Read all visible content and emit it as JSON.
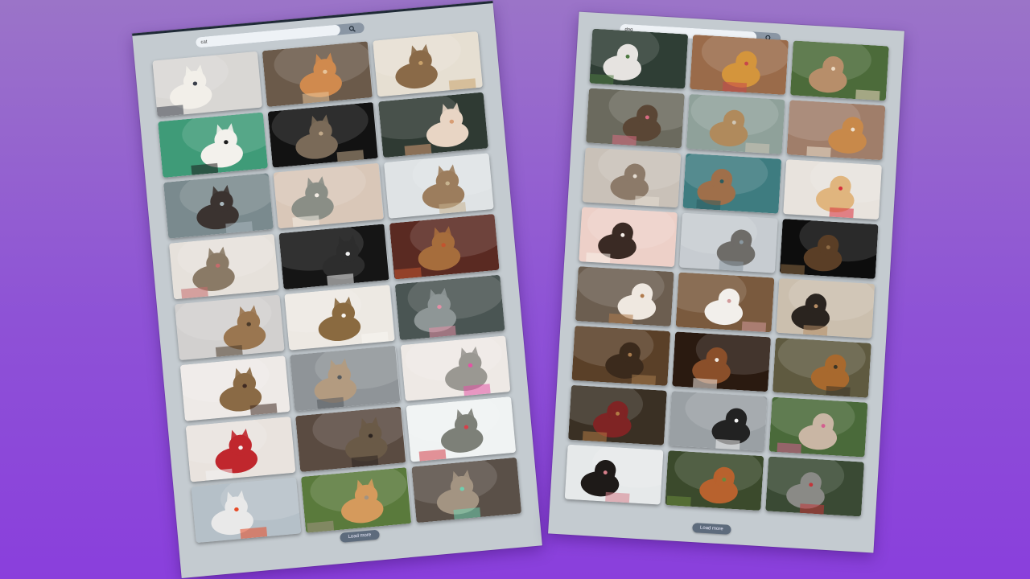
{
  "cat_panel": {
    "search_value": "cat",
    "search_icon": "search-icon",
    "load_more_label": "Load more",
    "photos": [
      {
        "subject": "siamese-cat",
        "bg": "#d9d7d4",
        "fg": "#f2efe9",
        "accent": "#3a3f4a"
      },
      {
        "subject": "orange-cats-lying",
        "bg": "#6b5a4a",
        "fg": "#d08a4e",
        "accent": "#e7c49a"
      },
      {
        "subject": "cat-in-white-kitchen",
        "bg": "#e6dfd2",
        "fg": "#8a6a48",
        "accent": "#c9a26b"
      },
      {
        "subject": "tuxedo-cat-green-wall",
        "bg": "#3f9b78",
        "fg": "#f3f1ec",
        "accent": "#1c1c1c"
      },
      {
        "subject": "tabby-cat-dark",
        "bg": "#121212",
        "fg": "#7a6a58",
        "accent": "#c1a98a"
      },
      {
        "subject": "hand-petting-cat",
        "bg": "#2f3a33",
        "fg": "#e8d5c4",
        "accent": "#d79d74"
      },
      {
        "subject": "cat-on-dock",
        "bg": "#7a8a8e",
        "fg": "#3b3330",
        "accent": "#a9b7bd"
      },
      {
        "subject": "kitten-on-bed",
        "bg": "#d9c7b8",
        "fg": "#8a8e86",
        "accent": "#f3ece4"
      },
      {
        "subject": "cat-in-basket",
        "bg": "#dfe3e5",
        "fg": "#9c7d5d",
        "accent": "#c7b38f"
      },
      {
        "subject": "yawning-tabby",
        "bg": "#e6e1db",
        "fg": "#8a7a66",
        "accent": "#c46b6b"
      },
      {
        "subject": "black-white-cat",
        "bg": "#151515",
        "fg": "#2d2d2d",
        "accent": "#f0f0f0"
      },
      {
        "subject": "tabby-on-cushion",
        "bg": "#5a2a22",
        "fg": "#a66d3c",
        "accent": "#c2542f"
      },
      {
        "subject": "tabby-profile",
        "bg": "#d2d0cf",
        "fg": "#9a7650",
        "accent": "#4a3a2a"
      },
      {
        "subject": "tabby-on-blanket",
        "bg": "#ede9e3",
        "fg": "#8a6a40",
        "accent": "#f7f5f2"
      },
      {
        "subject": "grey-cat-licking",
        "bg": "#4a5553",
        "fg": "#8e9696",
        "accent": "#e48fa6"
      },
      {
        "subject": "cat-being-petted",
        "bg": "#eeeae7",
        "fg": "#8a6a45",
        "accent": "#3f2a22"
      },
      {
        "subject": "kitten-on-street",
        "bg": "#8f9498",
        "fg": "#b39b80",
        "accent": "#555a5e"
      },
      {
        "subject": "kittens-with-toys",
        "bg": "#eee9e5",
        "fg": "#9a9892",
        "accent": "#e453a5"
      },
      {
        "subject": "cat-on-red-blanket",
        "bg": "#e9e3de",
        "fg": "#c0272d",
        "accent": "#f3f3f3"
      },
      {
        "subject": "tabby-sitting",
        "bg": "#5a4b41",
        "fg": "#6a5a47",
        "accent": "#2c2420"
      },
      {
        "subject": "cat-with-flowers",
        "bg": "#f0f3f3",
        "fg": "#7d8078",
        "accent": "#d6404a"
      },
      {
        "subject": "cat-in-red-cart",
        "bg": "#b5c0c8",
        "fg": "#e9e9e9",
        "accent": "#e74a26"
      },
      {
        "subject": "cat-on-path",
        "bg": "#5a7a3c",
        "fg": "#d59a5c",
        "accent": "#a29382"
      },
      {
        "subject": "tabby-closeup",
        "bg": "#5a5048",
        "fg": "#a39482",
        "accent": "#6fcfb0"
      }
    ]
  },
  "dog_panel": {
    "search_value": "dog",
    "search_icon": "search-icon",
    "load_more_label": "Load more",
    "photos": [
      {
        "subject": "small-white-dog-running",
        "bg": "#2f3e35",
        "fg": "#e6e3e0",
        "accent": "#4f7a42"
      },
      {
        "subject": "golden-retriever-flag",
        "bg": "#9a6b4a",
        "fg": "#d4953c",
        "accent": "#c7484b"
      },
      {
        "subject": "dogs-playing-grass",
        "bg": "#4c6b3a",
        "fg": "#b78e6a",
        "accent": "#ecd9c1"
      },
      {
        "subject": "dog-licking-nose",
        "bg": "#6b6a5e",
        "fg": "#5a4635",
        "accent": "#d86b82"
      },
      {
        "subject": "three-puppies-street",
        "bg": "#8fa19a",
        "fg": "#b08a5c",
        "accent": "#cfc6b6"
      },
      {
        "subject": "corgi-and-terrier",
        "bg": "#a07e6a",
        "fg": "#c8894a",
        "accent": "#ede1d0"
      },
      {
        "subject": "pug-in-blanket",
        "bg": "#c9c1b8",
        "fg": "#8c7a69",
        "accent": "#e4dcd2"
      },
      {
        "subject": "dogs-on-teal-bench",
        "bg": "#3e7c80",
        "fg": "#9f6f4a",
        "accent": "#2b5b5e"
      },
      {
        "subject": "golden-puppy",
        "bg": "#e8e3dd",
        "fg": "#e0b57e",
        "accent": "#d8303c"
      },
      {
        "subject": "jack-russell-pink",
        "bg": "#edd0c8",
        "fg": "#3a2a24",
        "accent": "#f7f0ea"
      },
      {
        "subject": "grey-dog-lake",
        "bg": "#c7ccd1",
        "fg": "#6e6c68",
        "accent": "#8a98a0"
      },
      {
        "subject": "dog-in-dark",
        "bg": "#0d0d0d",
        "fg": "#5a3e26",
        "accent": "#8d6a44"
      },
      {
        "subject": "dog-lying-floor",
        "bg": "#6c5e50",
        "fg": "#efe8e0",
        "accent": "#b07b4d"
      },
      {
        "subject": "white-pitbull-floor",
        "bg": "#7a5a3e",
        "fg": "#f2efeb",
        "accent": "#d19a9a"
      },
      {
        "subject": "puppy-on-beach",
        "bg": "#cbbfae",
        "fg": "#2a241f",
        "accent": "#b58c64"
      },
      {
        "subject": "dog-on-table",
        "bg": "#5a4028",
        "fg": "#3b2a1c",
        "accent": "#a57a4d"
      },
      {
        "subject": "boxer-closeup",
        "bg": "#2a1a10",
        "fg": "#8a4f2a",
        "accent": "#efe8e0"
      },
      {
        "subject": "dog-with-stick",
        "bg": "#5f5a40",
        "fg": "#a8692e",
        "accent": "#3c3526"
      },
      {
        "subject": "man-hugging-dog",
        "bg": "#3a3024",
        "fg": "#7f2424",
        "accent": "#b17a44"
      },
      {
        "subject": "husky-on-street",
        "bg": "#9aa0a4",
        "fg": "#222",
        "accent": "#f3f3f3"
      },
      {
        "subject": "pitbull-in-flowers",
        "bg": "#4a6a3a",
        "fg": "#c9b6a4",
        "accent": "#d35f8f"
      },
      {
        "subject": "dog-in-car-window",
        "bg": "#e6e9ea",
        "fg": "#1e1a18",
        "accent": "#d67f8a"
      },
      {
        "subject": "spaniel-in-forest",
        "bg": "#3b4a2c",
        "fg": "#b8622e",
        "accent": "#6a8a3c"
      },
      {
        "subject": "dogs-in-hammock",
        "bg": "#3a4a34",
        "fg": "#8a8a86",
        "accent": "#c2363a"
      }
    ]
  }
}
